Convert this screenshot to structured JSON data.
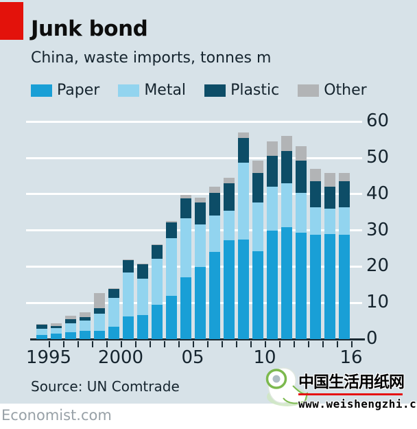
{
  "header": {
    "title": "Junk bond",
    "subtitle": "China, waste imports, tonnes m"
  },
  "chart_data": {
    "type": "bar",
    "stacked": true,
    "title": "Junk bond",
    "subtitle": "China, waste imports, tonnes m",
    "unit": "tonnes m",
    "categories": [
      1995,
      1996,
      1997,
      1998,
      1999,
      2000,
      2001,
      2002,
      2003,
      2004,
      2005,
      2006,
      2007,
      2008,
      2009,
      2010,
      2011,
      2012,
      2013,
      2014,
      2015,
      2016
    ],
    "series": [
      {
        "name": "Paper",
        "color": "#199fd6",
        "values": [
          1.1,
          1.5,
          1.9,
          2.2,
          2.2,
          3.5,
          6.3,
          6.6,
          9.5,
          12.0,
          17.0,
          19.8,
          24.0,
          27.3,
          27.5,
          24.2,
          30.0,
          30.9,
          29.4,
          28.7,
          29.0,
          28.7
        ]
      },
      {
        "name": "Metal",
        "color": "#92d4ef",
        "values": [
          1.8,
          1.6,
          2.5,
          2.9,
          4.9,
          7.9,
          12.0,
          10.1,
          12.6,
          15.8,
          16.3,
          11.8,
          10.0,
          8.1,
          21.1,
          13.4,
          12.0,
          12.0,
          11.0,
          7.6,
          7.0,
          7.6
        ]
      },
      {
        "name": "Plastic",
        "color": "#0d4d67",
        "values": [
          1.1,
          0.5,
          1.0,
          0.9,
          1.4,
          2.5,
          3.5,
          3.9,
          3.8,
          4.4,
          5.5,
          6.0,
          6.4,
          7.5,
          6.9,
          8.2,
          8.5,
          8.9,
          8.8,
          7.3,
          6.0,
          7.3
        ]
      },
      {
        "name": "Other",
        "color": "#b2b4b6",
        "values": [
          0.2,
          0.8,
          1.0,
          1.4,
          4.1,
          0.2,
          0.2,
          0.2,
          0.3,
          0.3,
          1.0,
          1.4,
          1.6,
          1.7,
          1.6,
          3.4,
          4.1,
          4.2,
          4.1,
          3.4,
          3.8,
          2.2
        ]
      }
    ],
    "ylim": [
      0,
      60
    ],
    "yticks": [
      0,
      10,
      20,
      30,
      40,
      50,
      60
    ],
    "xticks": [
      {
        "label": "1995",
        "index": 0
      },
      {
        "label": "2000",
        "index": 5
      },
      {
        "label": "05",
        "index": 10
      },
      {
        "label": "10",
        "index": 15
      },
      {
        "label": "16",
        "index": 21
      }
    ],
    "grid": "horizontal, white, on",
    "legend_position": "top-left, horizontal"
  },
  "source": "Source: UN Comtrade",
  "footer": "Economist.com",
  "watermark": {
    "site_name": "中国生活用纸网",
    "url": "www.weishengzhi.cn"
  },
  "colors": {
    "panel_background": "#d7e2e8",
    "brand_red": "#e3120b",
    "text_dark": "#15242e",
    "gridline": "#ffffff",
    "axis": "#1b2a33",
    "footer_text": "#98a1a7",
    "watermark_red": "#e51212",
    "watermark_green": "#7cb94e"
  }
}
